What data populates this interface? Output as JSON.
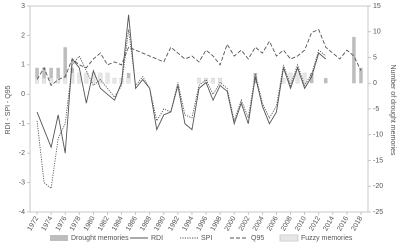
{
  "chart_data": {
    "type": "combo",
    "y_label": "RDI - SPI - Q95",
    "y2_label": "Number of drought memories",
    "x": [
      1972,
      1973,
      1974,
      1975,
      1976,
      1977,
      1978,
      1979,
      1980,
      1981,
      1982,
      1983,
      1984,
      1985,
      1986,
      1987,
      1988,
      1989,
      1990,
      1991,
      1992,
      1993,
      1994,
      1995,
      1996,
      1997,
      1998,
      1999,
      2000,
      2001,
      2002,
      2003,
      2004,
      2005,
      2006,
      2007,
      2008,
      2009,
      2010,
      2011,
      2012,
      2013,
      2014,
      2015,
      2016,
      2017,
      2018
    ],
    "xlim": [
      1971,
      2019
    ],
    "xticks": [
      1972,
      1974,
      1976,
      1978,
      1980,
      1982,
      1984,
      1986,
      1988,
      1990,
      1992,
      1994,
      1996,
      1998,
      2000,
      2002,
      2004,
      2006,
      2008,
      2010,
      2012,
      2014,
      2016,
      2018
    ],
    "ylim": [
      -4,
      3
    ],
    "yticks": [
      -4,
      -3,
      -2,
      -1,
      0,
      1,
      2,
      3
    ],
    "y2lim": [
      -25,
      15
    ],
    "y2ticks": [
      -25,
      -20,
      -15,
      -10,
      -5,
      0,
      5,
      10,
      15
    ],
    "series": [
      {
        "name": "Drought memories",
        "kind": "bar",
        "axis": "y2",
        "color": "#bdbdbd",
        "values": [
          3,
          3,
          3,
          3,
          7,
          3,
          2,
          1,
          1,
          0,
          0,
          0,
          0,
          2,
          0,
          0,
          0,
          0,
          0,
          0,
          0,
          0,
          0,
          0,
          0,
          0,
          0,
          0,
          0,
          0,
          0,
          2,
          0,
          0,
          0,
          0,
          2,
          0,
          0,
          2,
          0,
          1,
          0,
          0,
          0,
          9,
          3
        ]
      },
      {
        "name": "RDI",
        "kind": "line",
        "color": "#555555",
        "dash": "none",
        "values": [
          -0.6,
          -1.2,
          -1.8,
          -0.7,
          -2.0,
          1.2,
          0.9,
          -0.3,
          0.8,
          0.2,
          0.0,
          -0.2,
          0.4,
          2.7,
          0.2,
          0.5,
          0.2,
          -1.2,
          -0.7,
          -0.6,
          0.3,
          -1.0,
          -1.2,
          0.2,
          0.4,
          -0.2,
          0.3,
          0.1,
          -1.0,
          -0.3,
          -1.0,
          0.6,
          -0.4,
          -1.0,
          -0.6,
          0.9,
          0.2,
          0.9,
          0.2,
          0.6,
          1.4,
          1.2,
          null,
          null,
          null,
          null,
          null
        ]
      },
      {
        "name": "SPI",
        "kind": "line",
        "color": "#555555",
        "dash": "1.2,1.2",
        "values": [
          -0.9,
          -3.0,
          -3.2,
          -1.5,
          -1.0,
          1.0,
          1.3,
          0.8,
          0.3,
          0.5,
          0.2,
          -0.1,
          0.3,
          2.2,
          0.3,
          0.6,
          0.2,
          -0.9,
          -0.5,
          -0.6,
          0.4,
          -0.7,
          -0.8,
          0.3,
          0.5,
          0.0,
          0.4,
          0.2,
          -0.9,
          -0.2,
          -0.8,
          0.7,
          -0.3,
          -0.8,
          -0.4,
          1.0,
          0.3,
          1.0,
          0.3,
          0.7,
          1.5,
          1.3,
          null,
          null,
          null,
          null,
          null
        ]
      },
      {
        "name": "Q95",
        "kind": "line",
        "color": "#555555",
        "dash": "4,2",
        "values": [
          0.5,
          0.9,
          0.3,
          0.5,
          0.6,
          1.2,
          1.0,
          0.9,
          1.2,
          1.4,
          1.0,
          1.1,
          1.0,
          1.6,
          1.5,
          1.4,
          1.3,
          1.2,
          1.1,
          1.6,
          1.4,
          1.2,
          1.3,
          1.1,
          1.5,
          1.3,
          1.0,
          1.7,
          1.3,
          1.5,
          1.2,
          1.6,
          1.4,
          1.8,
          1.3,
          1.5,
          1.2,
          1.3,
          1.5,
          2.1,
          2.2,
          1.6,
          1.4,
          1.2,
          1.5,
          1.3,
          0.8
        ]
      },
      {
        "name": "Fuzzy memories",
        "kind": "bar",
        "axis": "y2",
        "color": "#e6e6e6",
        "values": [
          1,
          1,
          1,
          1,
          1,
          2,
          2,
          2,
          2,
          2,
          2,
          1,
          1,
          1,
          0,
          0,
          0,
          0,
          0,
          0,
          0,
          0,
          0,
          1,
          1,
          1,
          1,
          0,
          0,
          0,
          0,
          0,
          0,
          0,
          0,
          1,
          2,
          2,
          2,
          0,
          0,
          0,
          0,
          0,
          0,
          0,
          0
        ]
      }
    ]
  }
}
